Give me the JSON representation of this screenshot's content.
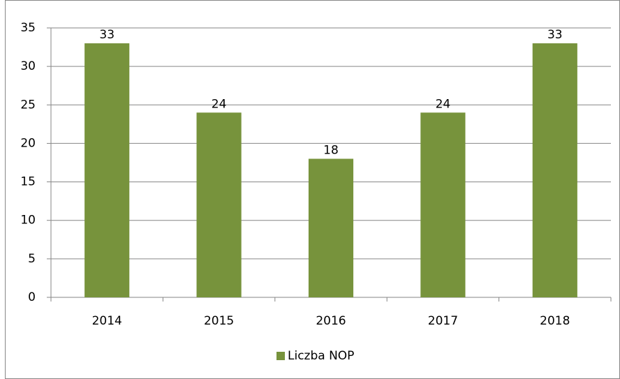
{
  "chart_data": {
    "type": "bar",
    "categories": [
      "2014",
      "2015",
      "2016",
      "2017",
      "2018"
    ],
    "series": [
      {
        "name": "Liczba NOP",
        "color": "#77933c",
        "values": [
          33,
          24,
          18,
          24,
          33
        ]
      }
    ],
    "ylim": [
      0,
      35
    ],
    "yticks": [
      0,
      5,
      10,
      15,
      20,
      25,
      30,
      35
    ],
    "grid": true,
    "data_labels": true,
    "legend": "bottom"
  }
}
